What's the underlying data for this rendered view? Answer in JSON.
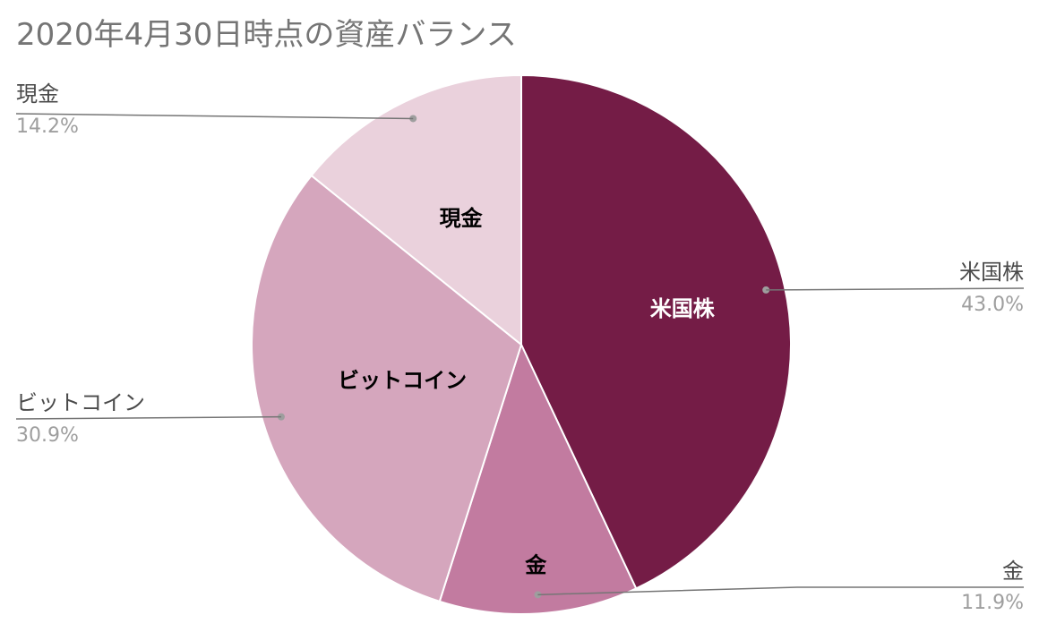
{
  "chart_data": {
    "type": "pie",
    "title": "2020年4月30日時点の資産バランス",
    "slices": [
      {
        "label": "米国株",
        "value": 43.0,
        "percent_label": "43.0%",
        "color": "#741c46",
        "label_color": "#ffffff"
      },
      {
        "label": "金",
        "value": 11.9,
        "percent_label": "11.9%",
        "color": "#c27ba0",
        "label_color": "#000000"
      },
      {
        "label": "ビットコイン",
        "value": 30.9,
        "percent_label": "30.9%",
        "color": "#d5a6bd",
        "label_color": "#000000"
      },
      {
        "label": "現金",
        "value": 14.2,
        "percent_label": "14.2%",
        "color": "#ead1dc",
        "label_color": "#000000"
      }
    ],
    "start_angle": "12 o'clock",
    "direction": "clockwise",
    "legend": "none"
  }
}
